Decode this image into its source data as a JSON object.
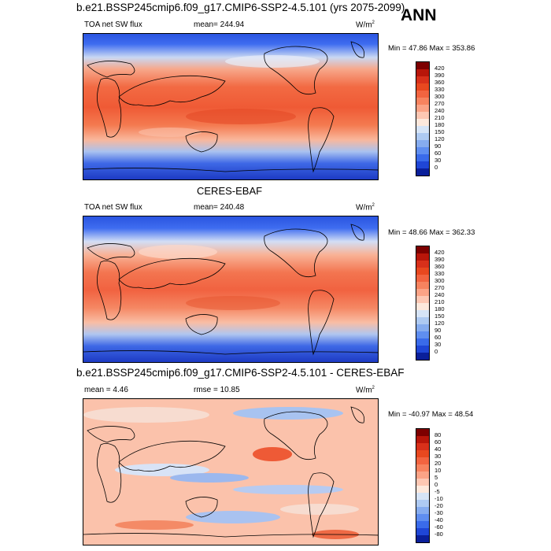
{
  "figure": {
    "title": "b.e21.BSSP245cmip6.f09_g17.CMIP6-SSP2-4.5.101 (yrs 2075-2099)",
    "season": "ANN"
  },
  "panel1": {
    "left": "TOA net SW flux",
    "mean": "mean= 244.94",
    "units": "W/m",
    "units_sup": "2",
    "minmax": "Min =  47.86 Max = 353.86"
  },
  "panel2": {
    "heading": "CERES-EBAF",
    "left": "TOA net SW flux",
    "mean": "mean= 240.48",
    "units": "W/m",
    "units_sup": "2",
    "minmax": "Min =  48.66 Max = 362.33"
  },
  "panel3": {
    "heading": "b.e21.BSSP245cmip6.f09_g17.CMIP6-SSP2-4.5.101 - CERES-EBAF",
    "mean": "mean =   4.46",
    "rmse": "rmse =  10.85",
    "units": "W/m",
    "units_sup": "2",
    "minmax": "Min = -40.97 Max =  48.54"
  },
  "colorbar_abs": {
    "labels": [
      "420",
      "390",
      "360",
      "330",
      "300",
      "270",
      "240",
      "210",
      "180",
      "150",
      "120",
      "90",
      "60",
      "30",
      "0"
    ],
    "colors": [
      "#7d0000",
      "#b8160a",
      "#d8301a",
      "#e8481f",
      "#f26440",
      "#f7835f",
      "#fba386",
      "#fdc7b3",
      "#fde8dc",
      "#d6e4f7",
      "#aecaf2",
      "#86acef",
      "#5f8ef0",
      "#3a6bea",
      "#1f46d6",
      "#0a1f9a"
    ]
  },
  "colorbar_diff": {
    "labels": [
      "80",
      "60",
      "40",
      "30",
      "20",
      "10",
      "5",
      "0",
      "-5",
      "-10",
      "-20",
      "-30",
      "-40",
      "-60",
      "-80"
    ],
    "colors": [
      "#7d0000",
      "#b8160a",
      "#d8301a",
      "#e8481f",
      "#f26440",
      "#f7835f",
      "#fba386",
      "#fdc7b3",
      "#fde8dc",
      "#d6e4f7",
      "#aecaf2",
      "#86acef",
      "#5f8ef0",
      "#3a6bea",
      "#1f46d6",
      "#0a1f9a"
    ]
  }
}
